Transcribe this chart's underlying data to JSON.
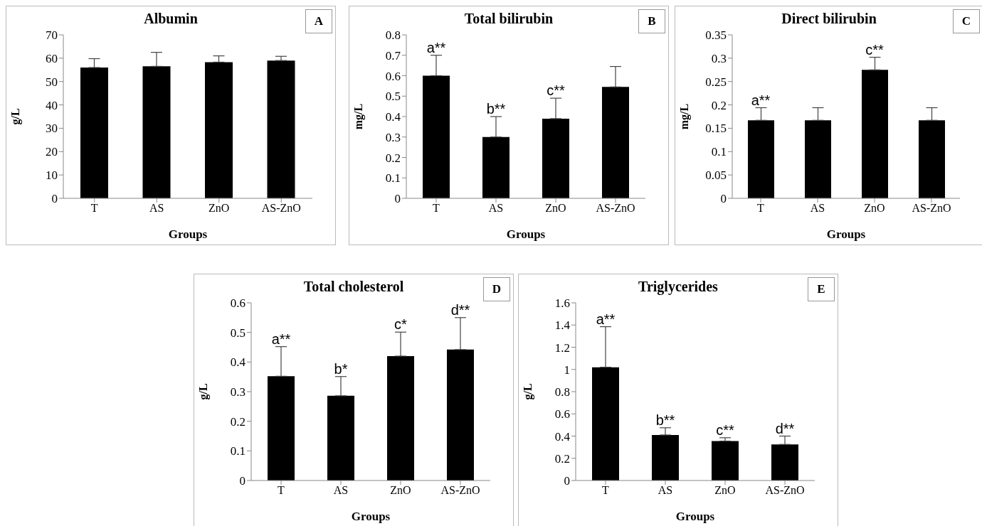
{
  "chart_data": [
    {
      "type": "bar",
      "title": "Albumin",
      "xlabel": "Groups",
      "ylabel": "g/L",
      "categories": [
        "T",
        "AS",
        "ZnO",
        "AS-ZnO"
      ],
      "color": "#000000",
      "values": [
        56,
        56.5,
        58.3,
        59
      ],
      "errors": [
        [
          56,
          59.8
        ],
        [
          56.5,
          62.5
        ],
        [
          58.3,
          61
        ],
        [
          59,
          60.8
        ]
      ],
      "ylim": [
        0,
        70
      ],
      "yticks": [
        0,
        10,
        20,
        30,
        40,
        50,
        60,
        70
      ],
      "annotations": [
        "A"
      ]
    },
    {
      "type": "bar",
      "title": "Total bilirubin",
      "xlabel": "Groups",
      "ylabel": "mg/L",
      "categories": [
        "T",
        "AS",
        "ZnO",
        "AS-ZnO"
      ],
      "color": "#000000",
      "values": [
        0.6,
        0.3,
        0.39,
        0.545
      ],
      "errors": [
        [
          0.6,
          0.7
        ],
        [
          0.3,
          0.4
        ],
        [
          0.39,
          0.49
        ],
        [
          0.545,
          0.645
        ]
      ],
      "ylim": [
        0,
        0.8
      ],
      "yticks": [
        0,
        0.1,
        0.2,
        0.3,
        0.4,
        0.5,
        0.6,
        0.7,
        0.8
      ],
      "annotations": [
        "B",
        {
          "text": "a**",
          "x": "T",
          "y": 0.7
        },
        {
          "text": "b**",
          "x": "AS",
          "y": 0.4
        },
        {
          "text": "c**",
          "x": "ZnO",
          "y": 0.49
        }
      ]
    },
    {
      "type": "bar",
      "title": "Direct bilirubin",
      "xlabel": "Groups",
      "ylabel": "mg/L",
      "categories": [
        "T",
        "AS",
        "ZnO",
        "AS-ZnO"
      ],
      "color": "#000000",
      "values": [
        0.167,
        0.167,
        0.275,
        0.167
      ],
      "errors": [
        [
          0.167,
          0.194
        ],
        [
          0.167,
          0.194
        ],
        [
          0.275,
          0.302
        ],
        [
          0.167,
          0.194
        ]
      ],
      "ylim": [
        0,
        0.35
      ],
      "yticks": [
        0,
        0.05,
        0.1,
        0.15,
        0.2,
        0.25,
        0.3,
        0.35
      ],
      "annotations": [
        "C",
        {
          "text": "a**",
          "x": "T",
          "y": 0.194
        },
        {
          "text": "c**",
          "x": "ZnO",
          "y": 0.302
        }
      ]
    },
    {
      "type": "bar",
      "title": "Total cholesterol",
      "xlabel": "Groups",
      "ylabel": "g/L",
      "categories": [
        "T",
        "AS",
        "ZnO",
        "AS-ZnO"
      ],
      "color": "#000000",
      "values": [
        0.352,
        0.286,
        0.42,
        0.442
      ],
      "errors": [
        [
          0.352,
          0.452
        ],
        [
          0.286,
          0.351
        ],
        [
          0.42,
          0.501
        ],
        [
          0.442,
          0.55
        ]
      ],
      "ylim": [
        0,
        0.6
      ],
      "yticks": [
        0,
        0.1,
        0.2,
        0.3,
        0.4,
        0.5,
        0.6
      ],
      "annotations": [
        "D",
        {
          "text": "a**",
          "x": "T",
          "y": 0.452
        },
        {
          "text": "b*",
          "x": "AS",
          "y": 0.351
        },
        {
          "text": "c*",
          "x": "ZnO",
          "y": 0.501
        },
        {
          "text": "d**",
          "x": "AS-ZnO",
          "y": 0.55
        }
      ]
    },
    {
      "type": "bar",
      "title": "Triglycerides",
      "xlabel": "Groups",
      "ylabel": "g/L",
      "categories": [
        "T",
        "AS",
        "ZnO",
        "AS-ZnO"
      ],
      "color": "#000000",
      "values": [
        1.02,
        0.41,
        0.355,
        0.325
      ],
      "errors": [
        [
          1.02,
          1.385
        ],
        [
          0.41,
          0.475
        ],
        [
          0.355,
          0.385
        ],
        [
          0.325,
          0.4
        ]
      ],
      "ylim": [
        0,
        1.6
      ],
      "yticks": [
        0,
        0.2,
        0.4,
        0.6,
        0.8,
        1,
        1.2,
        1.4,
        1.6
      ],
      "annotations": [
        "E",
        {
          "text": "a**",
          "x": "T",
          "y": 1.385
        },
        {
          "text": "b**",
          "x": "AS",
          "y": 0.475
        },
        {
          "text": "c**",
          "x": "ZnO",
          "y": 0.385
        },
        {
          "text": "d**",
          "x": "AS-ZnO",
          "y": 0.4
        }
      ]
    }
  ]
}
